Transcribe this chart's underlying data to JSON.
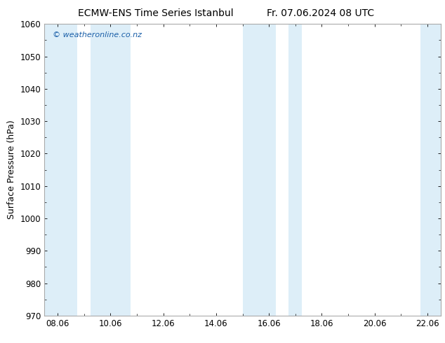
{
  "title_left": "ECMW-ENS Time Series Istanbul",
  "title_right": "Fr. 07.06.2024 08 UTC",
  "ylabel": "Surface Pressure (hPa)",
  "ylim": [
    970,
    1060
  ],
  "yticks": [
    970,
    980,
    990,
    1000,
    1010,
    1020,
    1030,
    1040,
    1050,
    1060
  ],
  "xtick_labels": [
    "08.06",
    "10.06",
    "12.06",
    "14.06",
    "16.06",
    "18.06",
    "20.06",
    "22.06"
  ],
  "xtick_positions": [
    0,
    2,
    4,
    6,
    8,
    10,
    12,
    14
  ],
  "xlim": [
    -0.5,
    14.5
  ],
  "watermark": "© weatheronline.co.nz",
  "watermark_color": "#1a5fa8",
  "bg_color": "#ffffff",
  "plot_bg_color": "#ffffff",
  "shaded_bands": [
    {
      "xmin": -0.5,
      "xmax": 0.75,
      "color": "#ddeef8"
    },
    {
      "xmin": 1.25,
      "xmax": 2.75,
      "color": "#ddeef8"
    },
    {
      "xmin": 7.0,
      "xmax": 8.25,
      "color": "#ddeef8"
    },
    {
      "xmin": 8.75,
      "xmax": 9.25,
      "color": "#ddeef8"
    },
    {
      "xmin": 13.75,
      "xmax": 14.5,
      "color": "#ddeef8"
    }
  ],
  "spine_color": "#aaaaaa",
  "tick_color": "#000000",
  "title_fontsize": 10,
  "label_fontsize": 9,
  "tick_fontsize": 8.5
}
